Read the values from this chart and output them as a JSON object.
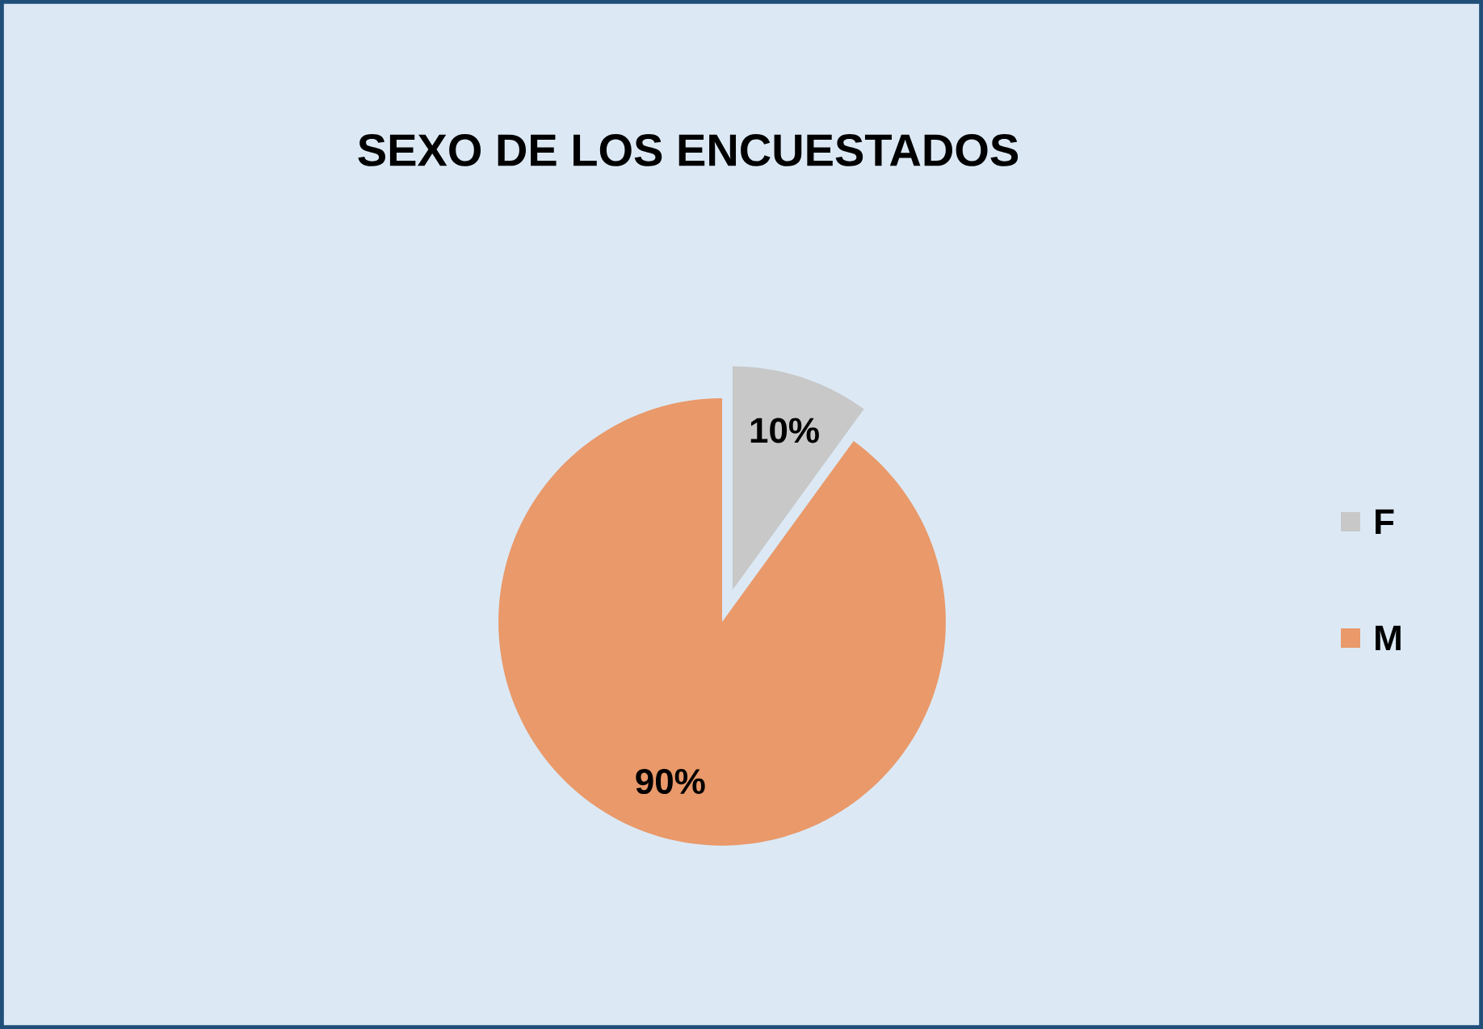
{
  "chart_data": {
    "type": "pie",
    "title": "SEXO DE LOS ENCUESTADOS",
    "categories": [
      "F",
      "M"
    ],
    "values": [
      10,
      90
    ],
    "value_labels": [
      "10%",
      "90%"
    ],
    "colors": [
      "#c8c8c8",
      "#e9996a"
    ],
    "legend": "right"
  }
}
